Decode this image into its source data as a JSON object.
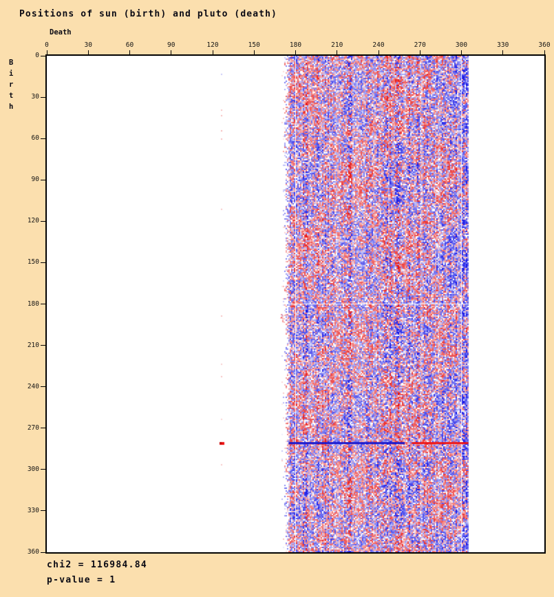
{
  "colors": {
    "background": "#fbdfae",
    "plot_background": "#ffffff",
    "axis": "#000000",
    "text": "#0a0a14",
    "positive_cell": "#e60a0a",
    "negative_cell": "#0a0ae6"
  },
  "header": {
    "title": "Positions of sun (birth) and pluto (death)"
  },
  "footer": {
    "chi2_label": "chi2 = 116984.84",
    "p_value_label": "p-value = 1"
  },
  "chart_data": {
    "type": "heatmap",
    "title": "Positions of sun (birth) and pluto (death)",
    "xlabel": "Death",
    "ylabel": "Birth",
    "xlim": [
      0,
      360
    ],
    "ylim": [
      0,
      360
    ],
    "y_axis_inverted": true,
    "xticks": [
      0,
      30,
      60,
      90,
      120,
      150,
      180,
      210,
      240,
      270,
      300,
      330,
      360
    ],
    "yticks": [
      0,
      30,
      60,
      90,
      120,
      150,
      180,
      210,
      240,
      270,
      300,
      330,
      360
    ],
    "grid": false,
    "legend_position": "none",
    "cell_deg": 1,
    "stats": {
      "chi2": 116984.84,
      "p_value": 1
    },
    "palette": {
      "positive": "#e60a0a",
      "negative": "#0a0ae6",
      "zero": "#ffffff"
    },
    "band": {
      "death_min": 170,
      "death_max": 305,
      "feather_deg": 7,
      "note": "red/blue noise cells fill only this death-longitude band for all birth 0-360; remainder of plot is white"
    },
    "noise": {
      "seed": 1337,
      "column_variation": 0.6,
      "blue_bias_from_death": 288,
      "white_threshold": 0.07
    },
    "anomalies": [
      {
        "kind": "hline",
        "birth": 280,
        "death_from": 175,
        "death_to": 259,
        "thickness_px": 3,
        "color": "#1515cc",
        "alpha": 0.95
      },
      {
        "kind": "hline",
        "birth": 280,
        "death_from": 264,
        "death_to": 305,
        "thickness_px": 3,
        "color": "#ee1111",
        "alpha": 0.95
      },
      {
        "kind": "spot",
        "death": 125,
        "birth": 280,
        "w_deg": 3.5,
        "h_deg": 2,
        "color": "#ee1111",
        "alpha": 1
      },
      {
        "kind": "spot",
        "death": 125,
        "birth": 280,
        "w_deg": 1.5,
        "h_deg": 1.5,
        "color": "#bb0000",
        "alpha": 1
      },
      {
        "kind": "smudge",
        "death": 169,
        "birth": 187,
        "w_deg": 6,
        "h_deg": 7,
        "color": "#ee4444",
        "alpha": 0.35,
        "cells": 26
      },
      {
        "kind": "dots",
        "death": 126,
        "dots": [
          {
            "birth": 13,
            "color": "#8888ee",
            "alpha": 0.45
          },
          {
            "birth": 39,
            "color": "#ee8888",
            "alpha": 0.5
          },
          {
            "birth": 43,
            "color": "#ee8888",
            "alpha": 0.55
          },
          {
            "birth": 54,
            "color": "#ee8888",
            "alpha": 0.6
          },
          {
            "birth": 60,
            "color": "#ee8888",
            "alpha": 0.55
          },
          {
            "birth": 111,
            "color": "#ee8888",
            "alpha": 0.45
          },
          {
            "birth": 188,
            "color": "#ee8888",
            "alpha": 0.5
          },
          {
            "birth": 223,
            "color": "#ee8888",
            "alpha": 0.4
          },
          {
            "birth": 232,
            "color": "#ee8888",
            "alpha": 0.5
          },
          {
            "birth": 263,
            "color": "#ee8888",
            "alpha": 0.35
          },
          {
            "birth": 296,
            "color": "#ee8888",
            "alpha": 0.45
          }
        ]
      }
    ]
  }
}
